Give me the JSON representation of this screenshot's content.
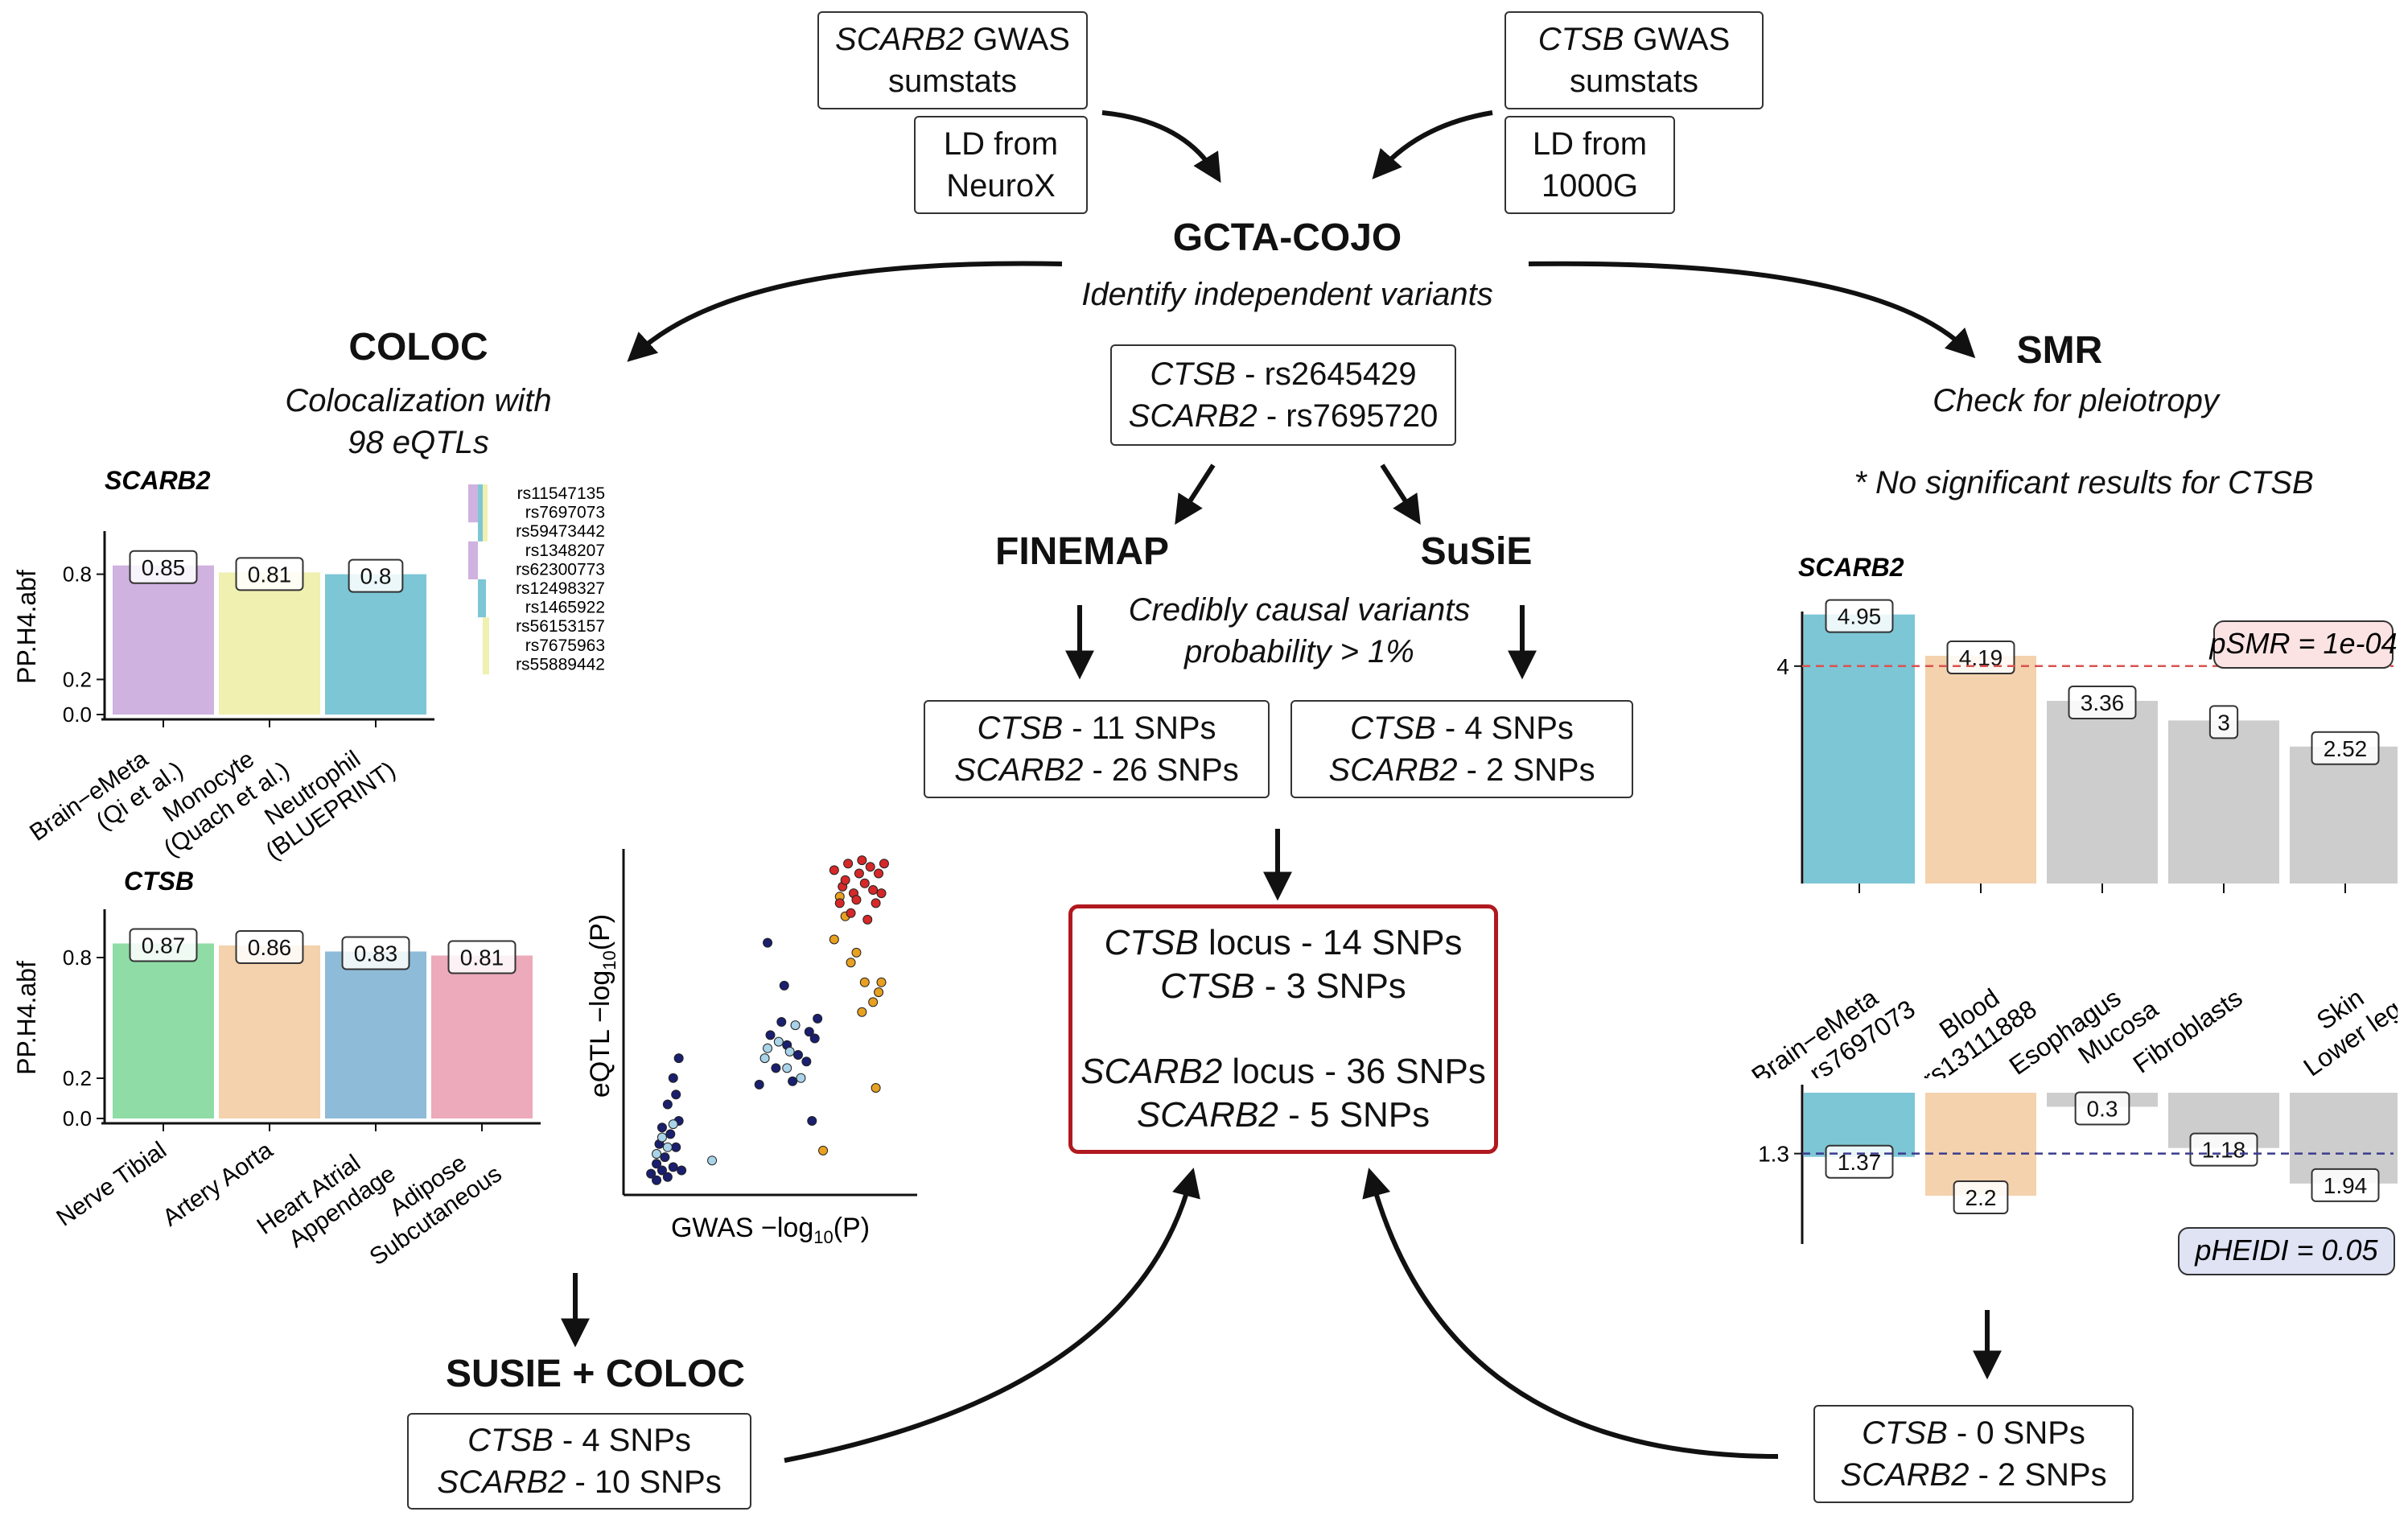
{
  "inputs": {
    "scarb2_sumstats": {
      "gene": "SCARB2",
      "line1_rest": " GWAS",
      "line2": "sumstats"
    },
    "ctsb_sumstats": {
      "gene": "CTSB",
      "line1_rest": " GWAS",
      "line2": "sumstats"
    },
    "ld_neurox": {
      "line1": "LD from",
      "line2": "NeuroX"
    },
    "ld_1000g": {
      "line1": "LD from",
      "line2": "1000G"
    }
  },
  "cojo": {
    "title": "GCTA-COJO",
    "subtitle": "Identify independent variants",
    "variants": [
      {
        "gene": "CTSB",
        "rest": " - rs2645429"
      },
      {
        "gene": "SCARB2",
        "rest": " - rs7695720"
      }
    ]
  },
  "finemap": {
    "title": "FINEMAP",
    "results": [
      {
        "gene": "CTSB",
        "rest": " - 11 SNPs"
      },
      {
        "gene": "SCARB2",
        "rest": " - 26 SNPs"
      }
    ]
  },
  "susie": {
    "title": "SuSiE",
    "results": [
      {
        "gene": "CTSB",
        "rest": " - 4 SNPs"
      },
      {
        "gene": "SCARB2",
        "rest": " - 2 SNPs"
      }
    ]
  },
  "causal_caption": {
    "line1": "Credibly causal variants",
    "line2": "probability > 1%"
  },
  "final": {
    "lines": [
      {
        "gene": "CTSB",
        "rest": " locus - 14 SNPs"
      },
      {
        "gene": "CTSB",
        "rest": "  - 3 SNPs"
      },
      {
        "gene": "SCARB2",
        "rest": " locus - 36 SNPs"
      },
      {
        "gene": "SCARB2",
        "rest": "  - 5 SNPs"
      }
    ]
  },
  "coloc": {
    "title": "COLOC",
    "subtitle_line1": "Colocalization with",
    "subtitle_line2": "98 eQTLs"
  },
  "susie_coloc": {
    "title": "SUSIE + COLOC",
    "results": [
      {
        "gene": "CTSB",
        "rest": " - 4 SNPs"
      },
      {
        "gene": "SCARB2",
        "rest": " - 10 SNPs"
      }
    ]
  },
  "smr": {
    "title": "SMR",
    "subtitle": "Check for pleiotropy",
    "note": "* No significant results for CTSB",
    "results": [
      {
        "gene": "CTSB",
        "rest": " - 0 SNPs"
      },
      {
        "gene": "SCARB2",
        "rest": " - 2 SNPs"
      }
    ]
  },
  "colors": {
    "purple": "#cfb2e0",
    "yellow": "#f0f0b0",
    "teal": "#7dc6d6",
    "green": "#8fdca6",
    "peach": "#f4d2ad",
    "blue": "#8ebbd8",
    "pink": "#ecaabb",
    "gray": "#cdcdcd",
    "final_border": "#b0191e",
    "smr_line": "#d9534f",
    "heidi_line": "#3b3b8f"
  },
  "chart_data": [
    {
      "id": "coloc_scarb2",
      "type": "bar",
      "title": "SCARB2",
      "ylabel": "PP.H4.abf",
      "ylim": [
        0,
        1
      ],
      "yticks": [
        "0.0",
        "0.2",
        "0.8"
      ],
      "categories": [
        [
          "Brain−eMeta",
          "(Qi et al.)"
        ],
        [
          "Monocyte",
          "(Quach et al.)"
        ],
        [
          "Neutrophil",
          "(BLUEPRINT)"
        ]
      ],
      "values": [
        0.85,
        0.81,
        0.8
      ],
      "labels": [
        "0.85",
        "0.81",
        "0.8"
      ],
      "colors": [
        "#cfb2e0",
        "#f0f0b0",
        "#7dc6d6"
      ],
      "snp_legend": [
        "rs11547135",
        "rs7697073",
        "rs59473442",
        "rs1348207",
        "rs62300773",
        "rs12498327",
        "rs1465922",
        "rs56153157",
        "rs7675963",
        "rs55889442"
      ]
    },
    {
      "id": "coloc_ctsb",
      "type": "bar",
      "title": "CTSB",
      "ylabel": "PP.H4.abf",
      "ylim": [
        0,
        1
      ],
      "yticks": [
        "0.0",
        "0.2",
        "0.8"
      ],
      "categories": [
        [
          "Nerve Tibial"
        ],
        [
          "Artery Aorta"
        ],
        [
          "Heart Atrial",
          "Appendage"
        ],
        [
          "Adipose",
          "Subcutaneous"
        ]
      ],
      "values": [
        0.87,
        0.86,
        0.83,
        0.81
      ],
      "labels": [
        "0.87",
        "0.86",
        "0.83",
        "0.81"
      ],
      "colors": [
        "#8fdca6",
        "#f4d2ad",
        "#8ebbd8",
        "#ecaabb"
      ]
    },
    {
      "id": "eqtl_scatter",
      "type": "scatter",
      "xlabel": "GWAS −log10(P)",
      "ylabel": "eQTL −log10(P)",
      "xlim": [
        0,
        10
      ],
      "ylim": [
        0,
        10
      ],
      "series": [
        {
          "color": "#1a1f6e",
          "points": [
            [
              0.9,
              0.2
            ],
            [
              1.1,
              0.5
            ],
            [
              1.3,
              0.3
            ],
            [
              0.7,
              0.4
            ],
            [
              1.5,
              0.6
            ],
            [
              1.2,
              0.9
            ],
            [
              1.6,
              1.2
            ],
            [
              1.4,
              1.6
            ],
            [
              1.0,
              1.3
            ],
            [
              1.7,
              2.0
            ],
            [
              1.3,
              2.5
            ],
            [
              1.6,
              2.8
            ],
            [
              1.5,
              3.3
            ],
            [
              1.7,
              3.9
            ],
            [
              0.9,
              0.7
            ],
            [
              1.8,
              0.5
            ],
            [
              1.1,
              1.8
            ],
            [
              4.6,
              3.1
            ],
            [
              5.2,
              3.6
            ],
            [
              5.6,
              4.3
            ],
            [
              6.0,
              4.0
            ],
            [
              6.4,
              4.7
            ],
            [
              5.0,
              4.6
            ],
            [
              6.3,
              3.8
            ],
            [
              6.6,
              4.5
            ],
            [
              5.8,
              3.2
            ],
            [
              5.4,
              5.0
            ],
            [
              6.7,
              5.1
            ],
            [
              6.5,
              2.0
            ],
            [
              4.9,
              7.4
            ],
            [
              5.5,
              6.1
            ]
          ]
        },
        {
          "color": "#a9d3e8",
          "points": [
            [
              1.3,
              1.2
            ],
            [
              1.1,
              1.5
            ],
            [
              0.9,
              1.0
            ],
            [
              1.5,
              1.9
            ],
            [
              2.9,
              0.8
            ],
            [
              4.8,
              3.9
            ],
            [
              5.3,
              4.4
            ],
            [
              5.6,
              3.6
            ],
            [
              5.9,
              4.9
            ],
            [
              4.9,
              4.2
            ],
            [
              6.1,
              3.3
            ],
            [
              5.7,
              4.1
            ]
          ]
        },
        {
          "color": "#e8a020",
          "points": [
            [
              6.9,
              1.1
            ],
            [
              7.5,
              8.8
            ],
            [
              7.7,
              8.2
            ],
            [
              8.1,
              7.1
            ],
            [
              8.4,
              6.2
            ],
            [
              8.7,
              5.6
            ],
            [
              9.0,
              6.2
            ],
            [
              8.9,
              5.9
            ],
            [
              8.8,
              3.0
            ],
            [
              7.9,
              6.8
            ],
            [
              8.3,
              5.3
            ],
            [
              7.3,
              7.5
            ]
          ]
        },
        {
          "color": "#d62828",
          "points": [
            [
              7.3,
              9.6
            ],
            [
              7.8,
              9.8
            ],
            [
              8.2,
              9.5
            ],
            [
              8.6,
              9.7
            ],
            [
              9.1,
              9.8
            ],
            [
              7.6,
              9.1
            ],
            [
              8.0,
              8.9
            ],
            [
              8.4,
              9.2
            ],
            [
              8.8,
              8.6
            ],
            [
              7.9,
              8.3
            ],
            [
              8.5,
              8.1
            ],
            [
              8.1,
              8.7
            ],
            [
              7.5,
              8.6
            ],
            [
              8.7,
              9.0
            ],
            [
              8.3,
              9.9
            ],
            [
              9.0,
              8.9
            ],
            [
              7.7,
              9.3
            ],
            [
              8.9,
              9.5
            ]
          ]
        }
      ]
    },
    {
      "id": "smr_pvalues",
      "type": "bar",
      "title": "SCARB2",
      "ylim": [
        0,
        5.3
      ],
      "ytick": "4",
      "threshold_label": "pSMR = 1e-04",
      "categories": [
        [
          "Brain−eMeta",
          "rs7697073"
        ],
        [
          "Blood",
          "rs13111888"
        ],
        [
          "Esophagus",
          "Mucosa"
        ],
        [
          "Fibroblasts"
        ],
        [
          "Skin",
          "Lower leg"
        ]
      ],
      "values": [
        4.95,
        4.19,
        3.36,
        3,
        2.52
      ],
      "labels": [
        "4.95",
        "4.19",
        "3.36",
        "3",
        "2.52"
      ],
      "colors": [
        "#7dc6d6",
        "#f4d2ad",
        "#cdcdcd",
        "#cdcdcd",
        "#cdcdcd"
      ]
    },
    {
      "id": "heidi_pvalues",
      "type": "bar",
      "orientation": "downward",
      "ylim": [
        0,
        2.2
      ],
      "ytick": "1.3",
      "threshold_label": "pHEIDI = 0.05",
      "values": [
        1.37,
        2.2,
        0.3,
        1.18,
        1.94
      ],
      "labels": [
        "1.37",
        "2.2",
        "0.3",
        "1.18",
        "1.94"
      ],
      "colors": [
        "#7dc6d6",
        "#f4d2ad",
        "#cdcdcd",
        "#cdcdcd",
        "#cdcdcd"
      ]
    }
  ]
}
